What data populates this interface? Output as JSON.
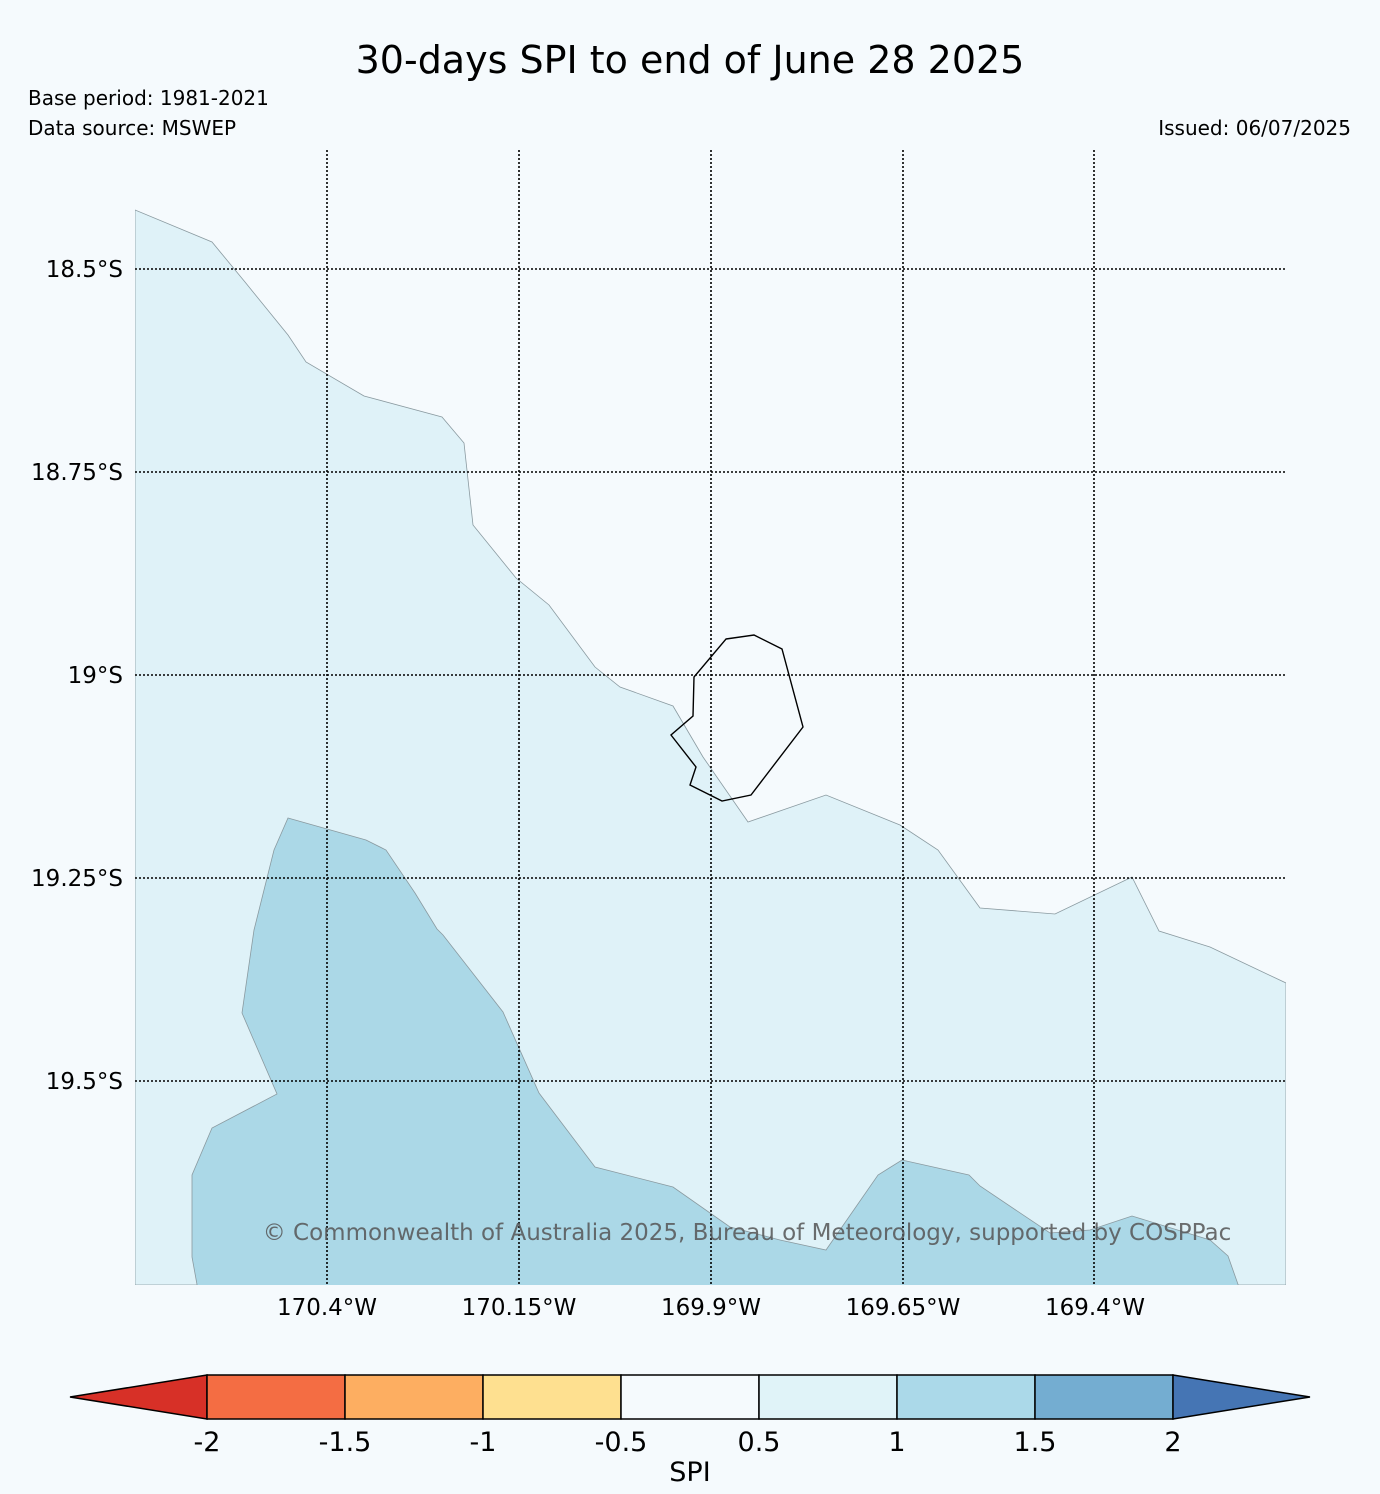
{
  "header": {
    "title": "30-days SPI to end of June 28 2025",
    "base_period": "Base period: 1981-2021",
    "data_source": "Data source: MSWEP",
    "issued": "Issued: 06/07/2025"
  },
  "map": {
    "lat_labels": [
      "18.5°S",
      "18.75°S",
      "19°S",
      "19.25°S",
      "19.5°S"
    ],
    "lon_labels": [
      "170.4°W",
      "170.15°W",
      "169.9°W",
      "169.65°W",
      "169.4°W"
    ],
    "copyright": "© Commonwealth of Australia 2025, Bureau of Meteorology, supported by COSPPac",
    "colors": {
      "background": "#f5fafd",
      "spi_0_5_to_1": "#dff2f8",
      "spi_1_to_1_5": "#abd8e7",
      "island_outline": "#000000"
    }
  },
  "colorbar": {
    "label": "SPI",
    "ticks": [
      "-2",
      "-1.5",
      "-1",
      "-0.5",
      "0.5",
      "1",
      "1.5",
      "2"
    ],
    "colors": [
      "#d73027",
      "#f46d43",
      "#fdae61",
      "#fee090",
      "#f5fafd",
      "#e0f3f8",
      "#abd9e9",
      "#74add1",
      "#4575b4"
    ]
  }
}
